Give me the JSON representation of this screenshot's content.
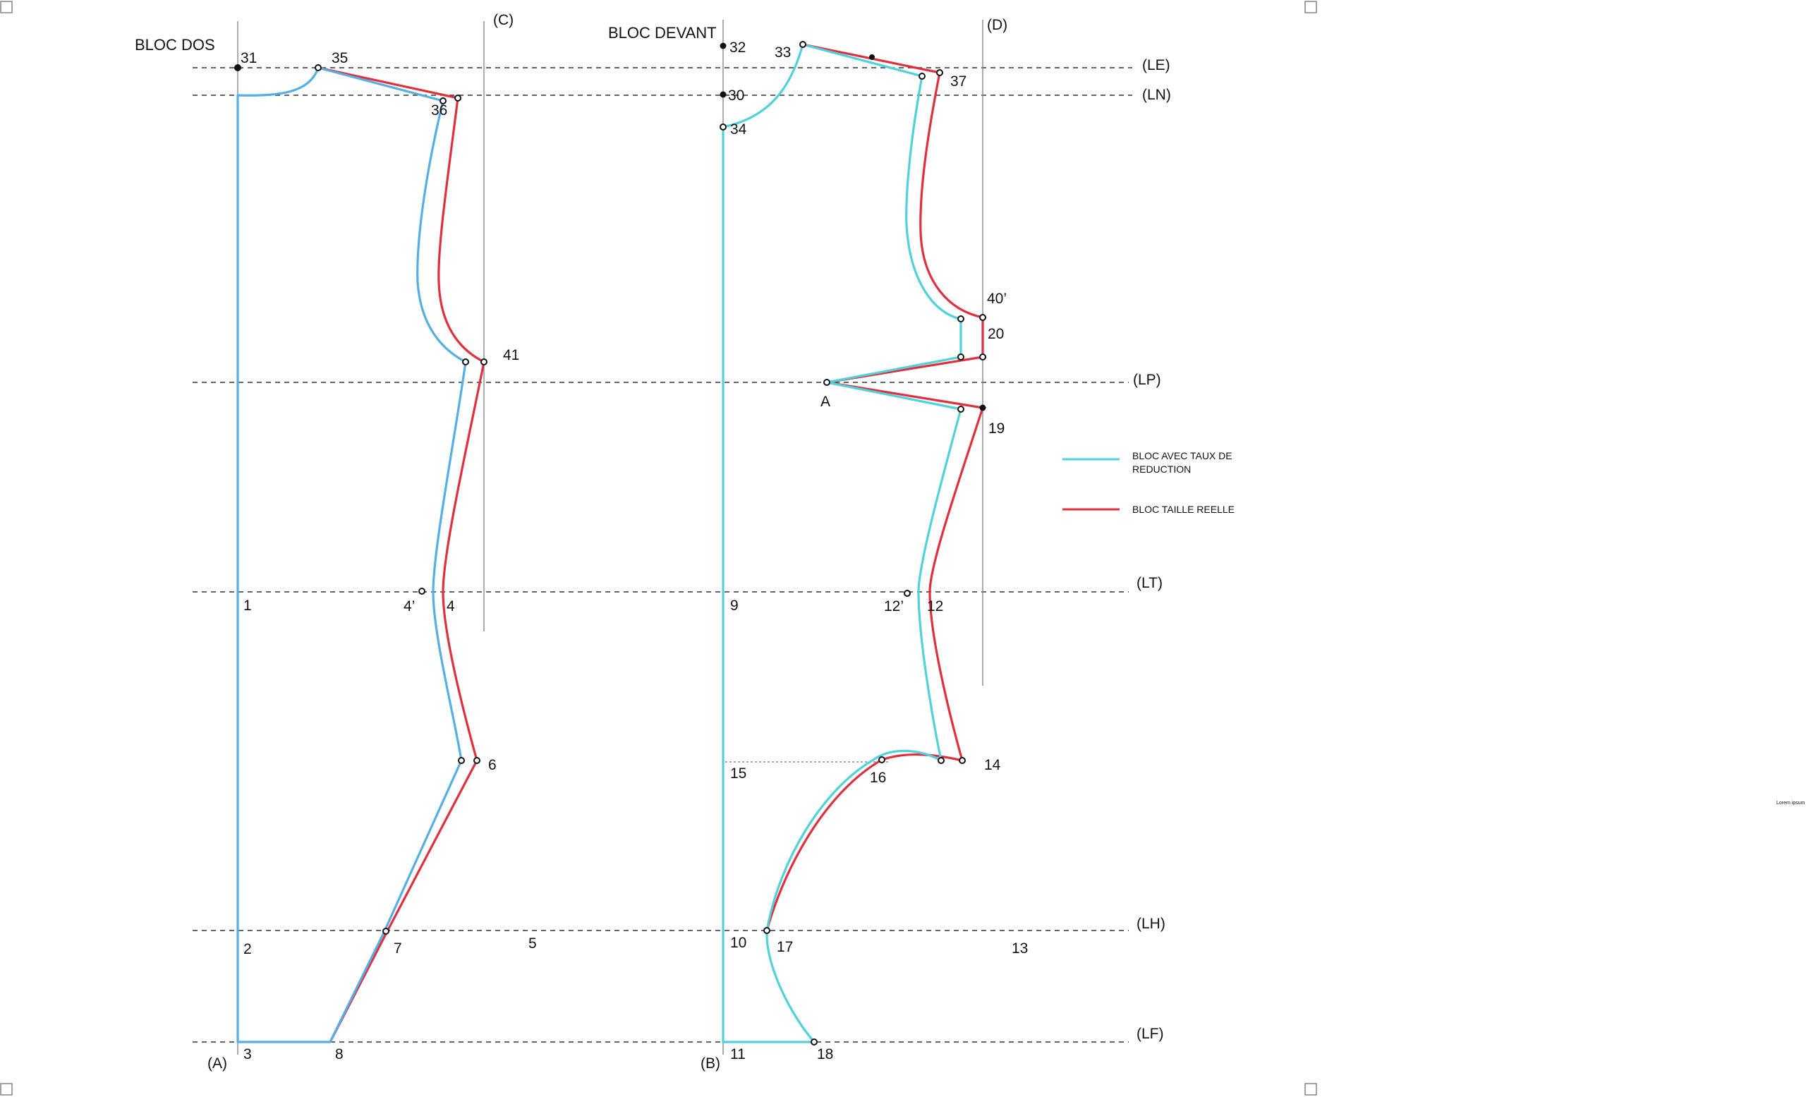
{
  "titles": {
    "back": "BLOC DOS",
    "front": "BLOC DEVANT"
  },
  "guides": {
    "le": "(LE)",
    "ln": "(LN)",
    "lp": "(LP)",
    "lt": "(LT)",
    "lh": "(LH)",
    "lf": "(LF)",
    "a": "(A)",
    "b": "(B)",
    "c": "(C)",
    "d": "(D)"
  },
  "back_points": {
    "p31": "31",
    "p35": "35",
    "p36": "36",
    "p41": "41",
    "p1": "1",
    "p4p": "4’",
    "p4": "4",
    "p6": "6",
    "p2": "2",
    "p7": "7",
    "p5": "5",
    "p3": "3",
    "p8": "8"
  },
  "front_points": {
    "p32": "32",
    "p33": "33",
    "p30": "30",
    "p37": "37",
    "p34": "34",
    "p40p": "40’",
    "p20": "20",
    "pA": "A",
    "p19": "19",
    "p9": "9",
    "p12p": "12’",
    "p12": "12",
    "p15": "15",
    "p16": "16",
    "p14": "14",
    "p10": "10",
    "p17": "17",
    "p13": "13",
    "p11": "11",
    "p18": "18"
  },
  "legend": {
    "reduced_line1": "BLOC  AVEC TAUX DE",
    "reduced_line2": "REDUCTION",
    "real": "BLOC TAILLE REELLE",
    "reduced_color": "#4fd2dc",
    "real_color": "#e0303d",
    "back_reduced_color": "#55aee6"
  },
  "side_note": "Lorem ipsum"
}
